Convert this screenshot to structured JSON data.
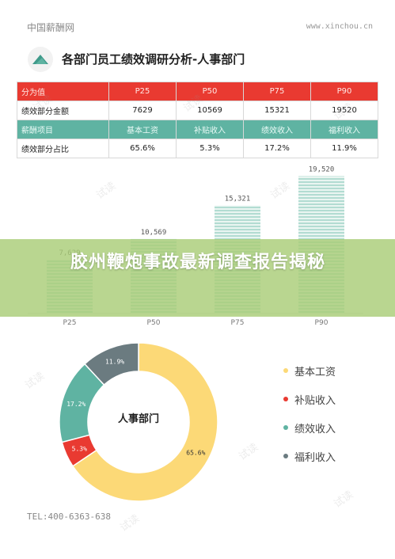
{
  "header": {
    "brand": "中国薪酬网",
    "site": "www.xinchou.cn"
  },
  "title": "各部门员工绩效调研分析-人事部门",
  "table": {
    "row1": {
      "label": "分为值",
      "cells": [
        "P25",
        "P50",
        "P75",
        "P90"
      ]
    },
    "row2": {
      "label": "绩效部分金额",
      "cells": [
        "7629",
        "10569",
        "15321",
        "19520"
      ]
    },
    "row3": {
      "label": "薪酬项目",
      "cells": [
        "基本工资",
        "补贴收入",
        "绩效收入",
        "福利收入"
      ]
    },
    "row4": {
      "label": "绩效部分占比",
      "cells": [
        "65.6%",
        "5.3%",
        "17.2%",
        "11.9%"
      ]
    }
  },
  "chart_data": [
    {
      "type": "bar",
      "categories": [
        "P25",
        "P50",
        "P75",
        "P90"
      ],
      "values": [
        7629,
        10569,
        15321,
        19520
      ],
      "value_labels": [
        "7,629",
        "10,569",
        "15,321",
        "19,520"
      ],
      "ylim": [
        0,
        20000
      ],
      "grid": false,
      "color": "#5fb3a2"
    },
    {
      "type": "pie",
      "categories": [
        "基本工资",
        "补贴收入",
        "绩效收入",
        "福利收入"
      ],
      "values": [
        65.6,
        5.3,
        17.2,
        11.9
      ],
      "value_labels": [
        "65.6%",
        "5.3%",
        "17.2%",
        "11.9%"
      ],
      "colors": [
        "#fcd977",
        "#e93a31",
        "#5fb3a2",
        "#6b7b80"
      ],
      "center_label": "人事部门",
      "legend_placement": "right"
    }
  ],
  "banner": {
    "text": "胶州鞭炮事故最新调查报告揭秘"
  },
  "footer": {
    "tel": "TEL:400-6363-638"
  },
  "watermark": "试读"
}
